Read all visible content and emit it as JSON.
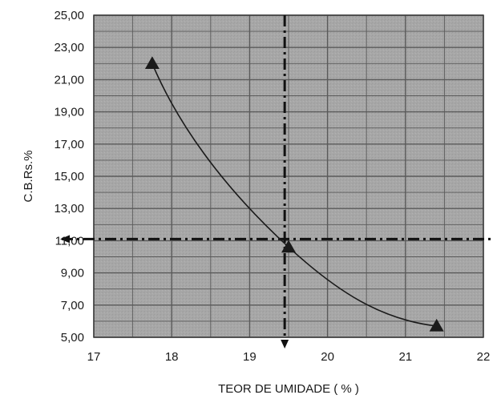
{
  "chart_data": {
    "type": "scatter",
    "xlabel": "TEOR DE UMIDADE ( % )",
    "ylabel": "C.B.Rs.%",
    "xlim": [
      17,
      22
    ],
    "ylim": [
      5.0,
      25.0
    ],
    "x_ticks": [
      "17",
      "18",
      "19",
      "20",
      "21",
      "22"
    ],
    "y_ticks": [
      "5,00",
      "7,00",
      "9,00",
      "11,00",
      "13,00",
      "15,00",
      "17,00",
      "19,00",
      "21,00",
      "23,00",
      "25,00"
    ],
    "grid": true,
    "series": [
      {
        "x": [
          17.75,
          19.5,
          21.4
        ],
        "y": [
          22.0,
          10.6,
          5.7
        ],
        "marker": "triangle",
        "trend": "curve"
      }
    ],
    "reference_lines": [
      {
        "orientation": "horizontal",
        "y": 11.1,
        "style": "dash-dot"
      },
      {
        "orientation": "vertical",
        "x": 19.45,
        "style": "dash-dot"
      }
    ],
    "colors": {
      "plot_background": "#a9a9a9",
      "grid": "#5a5a5a",
      "series": "#1a1a1a"
    }
  }
}
